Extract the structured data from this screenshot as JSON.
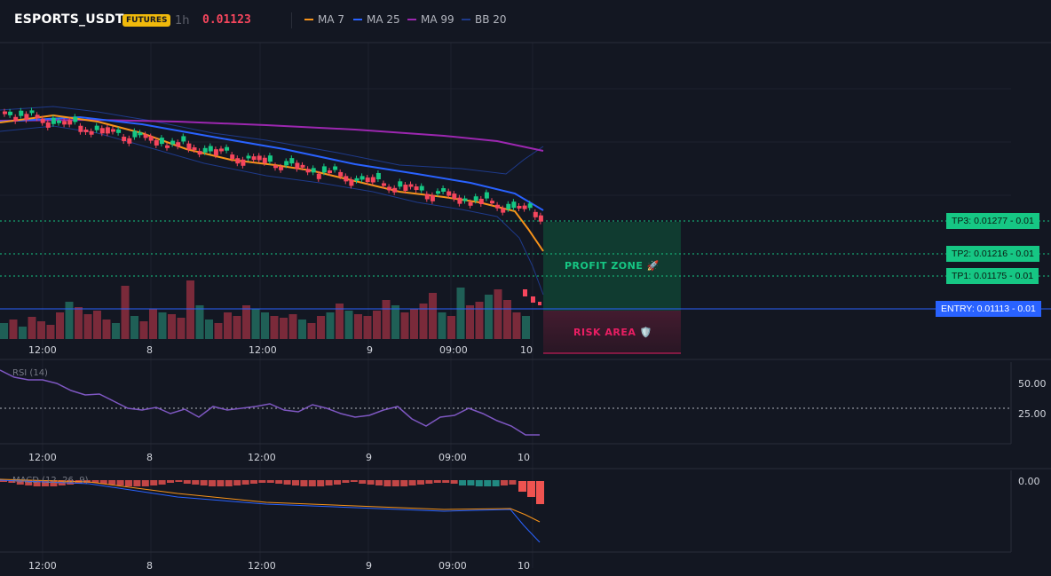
{
  "header": {
    "symbol": "ESPORTS_USDT",
    "badge": "FUTURES",
    "timeframe": "1h",
    "last_price": "0.01123",
    "indicators": [
      {
        "label": "MA 7",
        "color": "#f7931a"
      },
      {
        "label": "MA 25",
        "color": "#2962ff"
      },
      {
        "label": "MA 99",
        "color": "#9c27b0"
      },
      {
        "label": "BB 20",
        "color": "#1e3a8a"
      }
    ]
  },
  "levels": {
    "tp3": "TP3: 0.01277 - 0.01",
    "tp2": "TP2: 0.01216 - 0.01",
    "tp1": "TP1: 0.01175 - 0.01",
    "entry": "ENTRY: 0.01113 - 0.01"
  },
  "zones": {
    "profit": "PROFIT ZONE 🚀",
    "risk": "RISK AREA 🛡️"
  },
  "time_axis": [
    "12:00",
    "8",
    "12:00",
    "9",
    "09:00",
    "10"
  ],
  "rsi": {
    "title": "RSI (14)",
    "ticks": [
      "50.00",
      "25.00"
    ]
  },
  "macd": {
    "title": "MACD (12, 26, 9)",
    "ticks": [
      "0.00"
    ]
  },
  "colors": {
    "up": "#16c784",
    "down": "#f6465d",
    "ma7": "#f7931a",
    "ma25": "#2962ff",
    "ma99": "#9c27b0",
    "bb": "#1e3a8a",
    "rsi": "#7e57c2"
  }
}
